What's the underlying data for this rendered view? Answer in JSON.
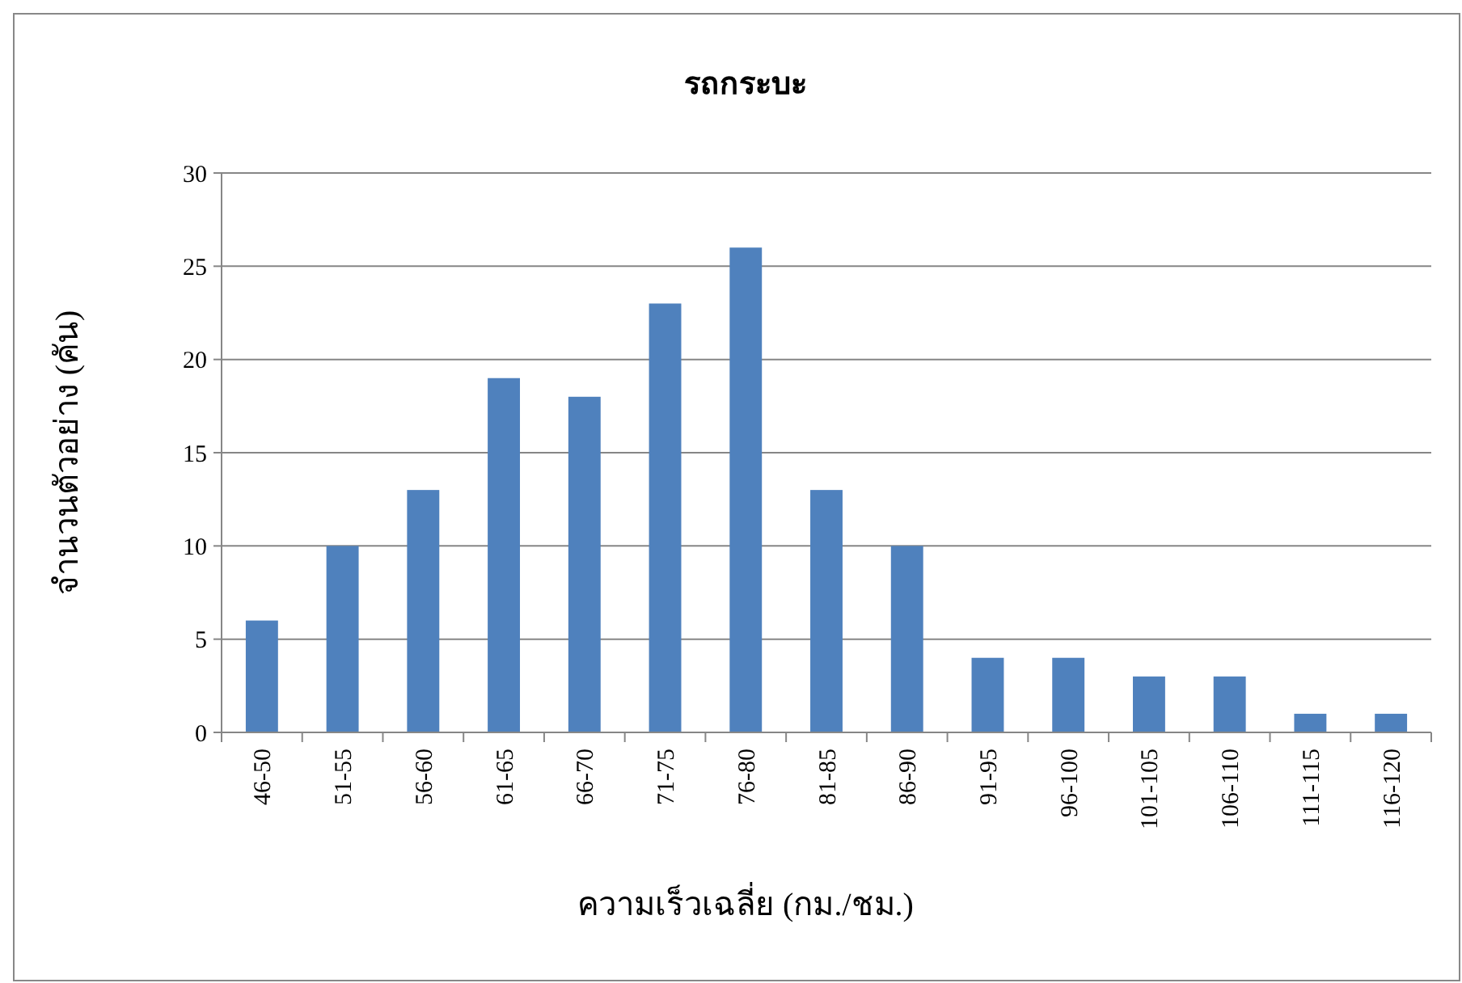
{
  "chart_data": {
    "type": "bar",
    "title": "รถกระบะ",
    "xlabel": "ความเร็วเฉลี่ย (กม./ชม.)",
    "ylabel": "จำนวนตัวอย่าง (คัน)",
    "categories": [
      "46-50",
      "51-55",
      "56-60",
      "61-65",
      "66-70",
      "71-75",
      "76-80",
      "81-85",
      "86-90",
      "91-95",
      "96-100",
      "101-105",
      "106-110",
      "111-115",
      "116-120"
    ],
    "values": [
      6,
      10,
      13,
      19,
      18,
      23,
      26,
      13,
      10,
      4,
      4,
      3,
      3,
      1,
      1
    ],
    "color": "#4f81bd",
    "ylim": [
      0,
      30
    ],
    "yticks": [
      0,
      5,
      10,
      15,
      20,
      25,
      30
    ],
    "grid": "y"
  }
}
